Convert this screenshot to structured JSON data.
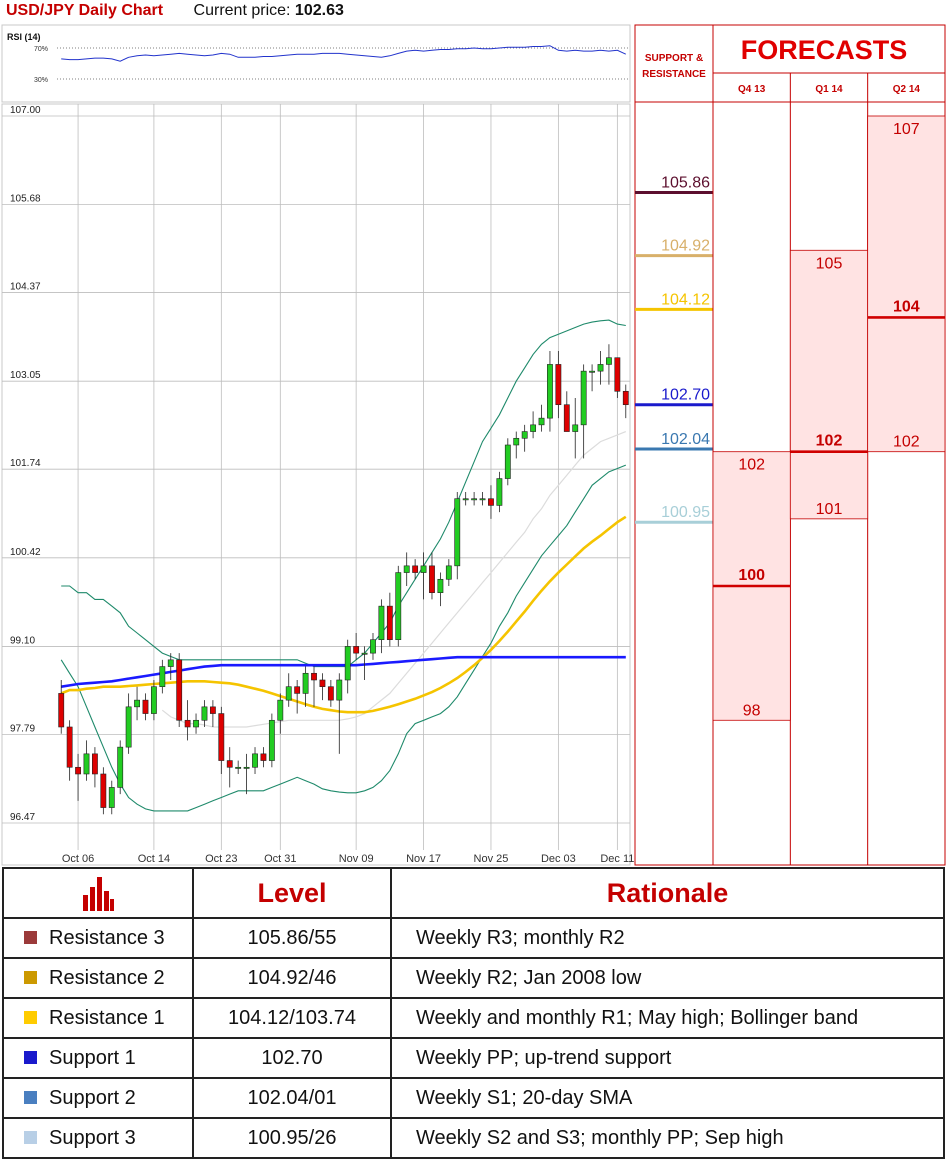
{
  "header": {
    "title": "USD/JPY Daily Chart",
    "price_label": "Current price:",
    "price_value": "102.63"
  },
  "chart_data": [
    {
      "type": "line",
      "title": "RSI (14)",
      "y_ticks": [
        "70%",
        "30%"
      ],
      "ylim": [
        0,
        100
      ],
      "dotted_levels": [
        70,
        30
      ],
      "values": [
        56,
        55,
        55,
        56,
        57,
        57,
        56,
        53,
        58,
        60,
        61,
        60,
        61,
        62,
        63,
        62,
        61,
        60,
        61,
        63,
        62,
        58,
        58,
        58,
        59,
        59,
        60,
        61,
        62,
        62,
        62,
        63,
        63,
        63,
        62,
        61,
        60,
        59,
        58,
        60,
        63,
        66,
        67,
        66,
        67,
        68,
        68,
        69,
        69,
        70,
        69,
        69,
        70,
        71,
        71,
        71,
        72,
        72,
        73,
        67,
        66,
        67,
        66,
        66,
        67,
        66,
        67,
        62
      ],
      "color": "#2233cc"
    },
    {
      "type": "candlestick",
      "ylim": [
        96.2,
        107.2
      ],
      "y_ticks": [
        "107.00",
        "105.68",
        "104.37",
        "103.05",
        "101.74",
        "100.42",
        "99.10",
        "97.79",
        "96.47"
      ],
      "x_ticks": [
        "Oct 06",
        "Oct 14",
        "Oct 23",
        "Oct 31",
        "Nov 09",
        "Nov 17",
        "Nov 25",
        "Dec 03",
        "Dec 11"
      ],
      "candles": [
        [
          98.4,
          98.6,
          97.8,
          97.9
        ],
        [
          97.9,
          98.0,
          97.1,
          97.3
        ],
        [
          97.3,
          97.5,
          96.8,
          97.2
        ],
        [
          97.2,
          97.7,
          97.1,
          97.5
        ],
        [
          97.5,
          97.6,
          97.0,
          97.2
        ],
        [
          97.2,
          97.3,
          96.6,
          96.7
        ],
        [
          96.7,
          97.1,
          96.6,
          97.0
        ],
        [
          97.0,
          97.7,
          96.9,
          97.6
        ],
        [
          97.6,
          98.4,
          97.5,
          98.2
        ],
        [
          98.2,
          98.5,
          98.0,
          98.3
        ],
        [
          98.3,
          98.4,
          98.0,
          98.1
        ],
        [
          98.1,
          98.6,
          98.0,
          98.5
        ],
        [
          98.5,
          98.9,
          98.4,
          98.8
        ],
        [
          98.8,
          99.0,
          98.6,
          98.9
        ],
        [
          98.9,
          99.0,
          97.9,
          98.0
        ],
        [
          98.0,
          98.3,
          97.7,
          97.9
        ],
        [
          97.9,
          98.1,
          97.8,
          98.0
        ],
        [
          98.0,
          98.3,
          97.9,
          98.2
        ],
        [
          98.2,
          98.3,
          97.9,
          98.1
        ],
        [
          98.1,
          98.2,
          97.2,
          97.4
        ],
        [
          97.4,
          97.6,
          97.0,
          97.3
        ],
        [
          97.3,
          97.4,
          97.2,
          97.3
        ],
        [
          97.3,
          97.5,
          96.9,
          97.3
        ],
        [
          97.3,
          97.6,
          97.2,
          97.5
        ],
        [
          97.5,
          97.6,
          97.3,
          97.4
        ],
        [
          97.4,
          98.1,
          97.3,
          98.0
        ],
        [
          98.0,
          98.4,
          97.8,
          98.3
        ],
        [
          98.3,
          98.7,
          98.2,
          98.5
        ],
        [
          98.5,
          98.6,
          98.1,
          98.4
        ],
        [
          98.4,
          98.8,
          98.2,
          98.7
        ],
        [
          98.7,
          98.8,
          98.2,
          98.6
        ],
        [
          98.6,
          98.7,
          98.3,
          98.5
        ],
        [
          98.5,
          98.6,
          98.2,
          98.3
        ],
        [
          98.3,
          98.7,
          97.5,
          98.6
        ],
        [
          98.6,
          99.2,
          98.4,
          99.1
        ],
        [
          99.1,
          99.3,
          98.9,
          99.0
        ],
        [
          99.0,
          99.1,
          98.6,
          99.0
        ],
        [
          99.0,
          99.3,
          98.9,
          99.2
        ],
        [
          99.2,
          99.8,
          99.0,
          99.7
        ],
        [
          99.7,
          99.9,
          99.1,
          99.2
        ],
        [
          99.2,
          100.3,
          99.1,
          100.2
        ],
        [
          100.2,
          100.5,
          100.0,
          100.3
        ],
        [
          100.3,
          100.4,
          100.1,
          100.2
        ],
        [
          100.2,
          100.5,
          99.8,
          100.3
        ],
        [
          100.3,
          100.5,
          99.8,
          99.9
        ],
        [
          99.9,
          100.2,
          99.7,
          100.1
        ],
        [
          100.1,
          100.4,
          100.0,
          100.3
        ],
        [
          100.3,
          101.4,
          100.1,
          101.3
        ],
        [
          101.3,
          101.4,
          101.2,
          101.3
        ],
        [
          101.3,
          101.4,
          101.2,
          101.3
        ],
        [
          101.3,
          101.4,
          101.2,
          101.3
        ],
        [
          101.3,
          101.5,
          101.0,
          101.2
        ],
        [
          101.2,
          101.7,
          101.1,
          101.6
        ],
        [
          101.6,
          102.2,
          101.5,
          102.1
        ],
        [
          102.1,
          102.3,
          101.9,
          102.2
        ],
        [
          102.2,
          102.4,
          102.0,
          102.3
        ],
        [
          102.3,
          102.6,
          102.2,
          102.4
        ],
        [
          102.4,
          102.7,
          102.3,
          102.5
        ],
        [
          102.5,
          103.5,
          102.3,
          103.3
        ],
        [
          103.3,
          103.5,
          102.5,
          102.7
        ],
        [
          102.7,
          102.9,
          102.3,
          102.3
        ],
        [
          102.3,
          102.8,
          101.9,
          102.4
        ],
        [
          102.4,
          103.3,
          101.9,
          103.2
        ],
        [
          103.2,
          103.3,
          102.9,
          103.2
        ],
        [
          103.2,
          103.5,
          103.0,
          103.3
        ],
        [
          103.3,
          103.6,
          103.0,
          103.4
        ],
        [
          103.4,
          103.4,
          102.8,
          102.9
        ],
        [
          102.9,
          103.0,
          102.5,
          102.7
        ]
      ],
      "series": [
        {
          "type": "bollinger_upper",
          "color": "#1f8a6b",
          "values": [
            100.0,
            100.0,
            99.9,
            99.9,
            99.8,
            99.8,
            99.7,
            99.6,
            99.4,
            99.3,
            99.2,
            99.1,
            99.0,
            98.95,
            98.9,
            98.9,
            98.9,
            98.9,
            98.9,
            98.9,
            98.9,
            98.9,
            98.9,
            98.9,
            98.9,
            98.9,
            98.9,
            98.9,
            98.9,
            98.85,
            98.8,
            98.8,
            98.8,
            98.8,
            98.8,
            98.9,
            99.0,
            99.15,
            99.3,
            99.45,
            99.7,
            99.9,
            100.1,
            100.3,
            100.5,
            100.7,
            100.95,
            101.25,
            101.55,
            101.85,
            102.15,
            102.35,
            102.55,
            102.8,
            103.05,
            103.25,
            103.45,
            103.6,
            103.7,
            103.75,
            103.8,
            103.85,
            103.9,
            103.93,
            103.95,
            103.96,
            103.9,
            103.88
          ]
        },
        {
          "type": "bollinger_lower",
          "color": "#1f8a6b",
          "values": [
            98.9,
            98.7,
            98.5,
            98.2,
            97.9,
            97.6,
            97.3,
            97.05,
            96.85,
            96.75,
            96.68,
            96.65,
            96.65,
            96.65,
            96.65,
            96.65,
            96.7,
            96.75,
            96.8,
            96.85,
            96.9,
            96.95,
            96.95,
            96.95,
            96.95,
            97.0,
            97.05,
            97.1,
            97.15,
            97.1,
            97.05,
            96.98,
            96.95,
            96.93,
            96.92,
            96.92,
            96.95,
            97.0,
            97.1,
            97.25,
            97.5,
            97.8,
            97.95,
            98.0,
            98.05,
            98.1,
            98.2,
            98.35,
            98.55,
            98.75,
            98.95,
            99.15,
            99.4,
            99.6,
            99.85,
            100.05,
            100.25,
            100.45,
            100.6,
            100.75,
            100.9,
            101.1,
            101.3,
            101.5,
            101.6,
            101.7,
            101.75,
            101.8
          ]
        },
        {
          "type": "sma_20",
          "color": "#dcdcdc",
          "values": [
            null,
            null,
            null,
            null,
            null,
            null,
            null,
            null,
            null,
            null,
            null,
            null,
            98.15,
            98.05,
            98.0,
            97.95,
            97.95,
            97.93,
            97.9,
            97.9,
            97.9,
            97.9,
            97.9,
            97.92,
            97.94,
            97.96,
            97.98,
            98.0,
            98.0,
            98.0,
            98.0,
            98.0,
            98.0,
            98.0,
            98.02,
            98.05,
            98.1,
            98.2,
            98.3,
            98.4,
            98.55,
            98.7,
            98.85,
            99.0,
            99.15,
            99.3,
            99.45,
            99.6,
            99.75,
            99.9,
            100.05,
            100.2,
            100.35,
            100.5,
            100.65,
            100.8,
            101.0,
            101.15,
            101.35,
            101.5,
            101.65,
            101.8,
            101.95,
            102.05,
            102.15,
            102.2,
            102.25,
            102.3
          ]
        },
        {
          "type": "sma_50",
          "color": "#f5c400",
          "values": [
            98.4,
            98.45,
            98.45,
            98.47,
            98.48,
            98.5,
            98.5,
            98.5,
            98.51,
            98.52,
            98.53,
            98.54,
            98.55,
            98.56,
            98.57,
            98.58,
            98.58,
            98.58,
            98.57,
            98.56,
            98.55,
            98.53,
            98.5,
            98.47,
            98.44,
            98.4,
            98.36,
            98.32,
            98.28,
            98.24,
            98.2,
            98.17,
            98.15,
            98.13,
            98.12,
            98.12,
            98.12,
            98.14,
            98.17,
            98.2,
            98.24,
            98.28,
            98.32,
            98.37,
            98.42,
            98.48,
            98.55,
            98.63,
            98.72,
            98.82,
            98.93,
            99.05,
            99.18,
            99.32,
            99.47,
            99.62,
            99.78,
            99.93,
            100.07,
            100.2,
            100.32,
            100.44,
            100.56,
            100.66,
            100.75,
            100.85,
            100.95,
            101.03
          ]
        },
        {
          "type": "sma_200",
          "color": "#1a1aff",
          "values": [
            98.5,
            98.52,
            98.54,
            98.55,
            98.56,
            98.57,
            98.58,
            98.6,
            98.62,
            98.64,
            98.66,
            98.68,
            98.7,
            98.72,
            98.74,
            98.76,
            98.78,
            98.8,
            98.81,
            98.82,
            98.82,
            98.82,
            98.82,
            98.82,
            98.82,
            98.82,
            98.82,
            98.82,
            98.82,
            98.82,
            98.82,
            98.82,
            98.82,
            98.82,
            98.82,
            98.82,
            98.83,
            98.84,
            98.85,
            98.86,
            98.87,
            98.88,
            98.89,
            98.9,
            98.91,
            98.92,
            98.93,
            98.94,
            98.94,
            98.94,
            98.94,
            98.94,
            98.94,
            98.94,
            98.94,
            98.94,
            98.94,
            98.94,
            98.94,
            98.94,
            98.94,
            98.94,
            98.94,
            98.94,
            98.94,
            98.94,
            98.94,
            98.94
          ]
        }
      ],
      "colors": {
        "up": "#22cc22",
        "down": "#dd0000"
      }
    },
    {
      "type": "table",
      "title": "SUPPORT & RESISTANCE",
      "levels": [
        {
          "label": "105.86",
          "value": 105.86,
          "color": "#5c0f2e"
        },
        {
          "label": "104.92",
          "value": 104.92,
          "color": "#d8b06a"
        },
        {
          "label": "104.12",
          "value": 104.12,
          "color": "#f5c400"
        },
        {
          "label": "102.70",
          "value": 102.7,
          "color": "#1a1acc"
        },
        {
          "label": "102.04",
          "value": 102.04,
          "color": "#3a78b0"
        },
        {
          "label": "100.95",
          "value": 100.95,
          "color": "#a8cfd8"
        }
      ]
    },
    {
      "type": "bar",
      "title": "FORECASTS",
      "categories": [
        "Q4 13",
        "Q1 14",
        "Q2 14"
      ],
      "series": [
        {
          "category": "Q4 13",
          "high": 102,
          "median": 100,
          "low": 98
        },
        {
          "category": "Q1 14",
          "high": 105,
          "median": 102,
          "low": 101
        },
        {
          "category": "Q2 14",
          "high": 107,
          "median": 104,
          "low": 102
        }
      ]
    }
  ],
  "table": {
    "headers": [
      "Level",
      "Rationale"
    ],
    "rows": [
      {
        "name": "Resistance 3",
        "level": "105.86/55",
        "rationale": "Weekly R3; monthly R2",
        "color": "#9b3a3a"
      },
      {
        "name": "Resistance 2",
        "level": "104.92/46",
        "rationale": "Weekly R2; Jan 2008 low",
        "color": "#cc9900"
      },
      {
        "name": "Resistance 1",
        "level": "104.12/103.74",
        "rationale": "Weekly and monthly R1; May high; Bollinger band",
        "color": "#ffcc00"
      },
      {
        "name": "Support 1",
        "level": "102.70",
        "rationale": "Weekly PP; up-trend support",
        "color": "#1a1acc"
      },
      {
        "name": "Support 2",
        "level": "102.04/01",
        "rationale": "Weekly S1; 20-day SMA",
        "color": "#4a7fc0"
      },
      {
        "name": "Support 3",
        "level": "100.95/26",
        "rationale": "Weekly S2 and S3; monthly PP; Sep high",
        "color": "#b8cfe6"
      }
    ]
  }
}
